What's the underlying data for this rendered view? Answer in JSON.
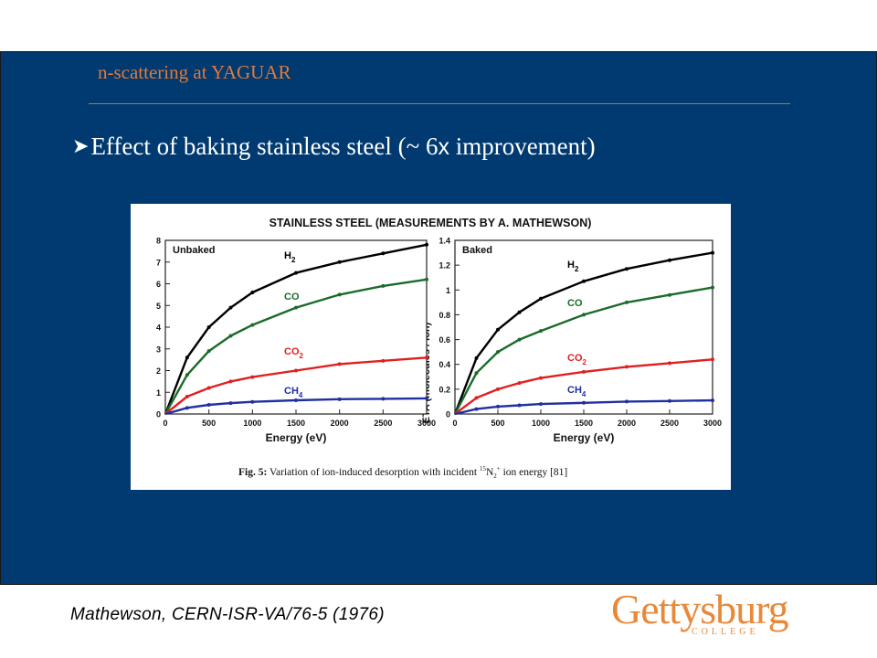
{
  "slide": {
    "title": "n-scattering at YAGUAR",
    "bullet_marker": "➤",
    "bullet_pre": "Effect of baking stainless steel (~ 6",
    "bullet_x": "x",
    "bullet_post": " improvement)",
    "citation": "Mathewson, CERN-ISR-VA/76-5 (1976)",
    "logo_word": "Gettysburg",
    "logo_sub": "COLLEGE"
  },
  "colors": {
    "background": "#003a70",
    "title": "#e07a3a",
    "logo": "#e8893a",
    "H2": "#000000",
    "CO": "#1a6b2a",
    "CO2": "#e02020",
    "CH4": "#2030a0"
  },
  "figure": {
    "title": "STAINLESS STEEL (MEASUREMENTS BY A. MATHEWSON)",
    "ylabel": "ETA (molecules / ion)",
    "caption_bold": "Fig. 5:",
    "caption_text": " Variation of ion-induced desorption with incident ",
    "caption_iso": "15",
    "caption_species": "N",
    "caption_sub": "2",
    "caption_sup": "+",
    "caption_end": " ion energy [81]"
  },
  "chart_data": [
    {
      "type": "line",
      "panel_label": "Unbaked",
      "xlabel": "Energy (eV)",
      "xlim": [
        0,
        3000
      ],
      "ylim": [
        0,
        8
      ],
      "xticks": [
        0,
        500,
        1000,
        1500,
        2000,
        2500,
        3000
      ],
      "yticks": [
        0,
        1,
        2,
        3,
        4,
        5,
        6,
        7,
        8
      ],
      "x": [
        0,
        250,
        500,
        750,
        1000,
        1500,
        2000,
        2500,
        3000
      ],
      "series": [
        {
          "name": "H2",
          "color": "#000000",
          "values": [
            0,
            2.6,
            4.0,
            4.9,
            5.6,
            6.5,
            7.0,
            7.4,
            7.8
          ]
        },
        {
          "name": "CO",
          "color": "#1a6b2a",
          "values": [
            0,
            1.8,
            2.9,
            3.6,
            4.1,
            4.9,
            5.5,
            5.9,
            6.2
          ]
        },
        {
          "name": "CO2",
          "color": "#e02020",
          "values": [
            0,
            0.8,
            1.2,
            1.5,
            1.7,
            2.0,
            2.3,
            2.45,
            2.6
          ]
        },
        {
          "name": "CH4",
          "color": "#2030a0",
          "values": [
            0,
            0.28,
            0.42,
            0.5,
            0.56,
            0.63,
            0.68,
            0.7,
            0.72
          ]
        }
      ]
    },
    {
      "type": "line",
      "panel_label": "Baked",
      "xlabel": "Energy (eV)",
      "xlim": [
        0,
        3000
      ],
      "ylim": [
        0,
        1.4
      ],
      "xticks": [
        0,
        500,
        1000,
        1500,
        2000,
        2500,
        3000
      ],
      "yticks": [
        0,
        0.2,
        0.4,
        0.6,
        0.8,
        1,
        1.2,
        1.4
      ],
      "x": [
        0,
        250,
        500,
        750,
        1000,
        1500,
        2000,
        2500,
        3000
      ],
      "series": [
        {
          "name": "H2",
          "color": "#000000",
          "values": [
            0,
            0.45,
            0.68,
            0.82,
            0.93,
            1.07,
            1.17,
            1.24,
            1.3
          ]
        },
        {
          "name": "CO",
          "color": "#1a6b2a",
          "values": [
            0,
            0.33,
            0.5,
            0.6,
            0.67,
            0.8,
            0.9,
            0.96,
            1.02
          ]
        },
        {
          "name": "CO2",
          "color": "#e02020",
          "values": [
            0,
            0.13,
            0.2,
            0.25,
            0.29,
            0.34,
            0.38,
            0.41,
            0.44
          ]
        },
        {
          "name": "CH4",
          "color": "#2030a0",
          "values": [
            0,
            0.04,
            0.06,
            0.07,
            0.08,
            0.09,
            0.1,
            0.105,
            0.11
          ]
        }
      ]
    }
  ]
}
